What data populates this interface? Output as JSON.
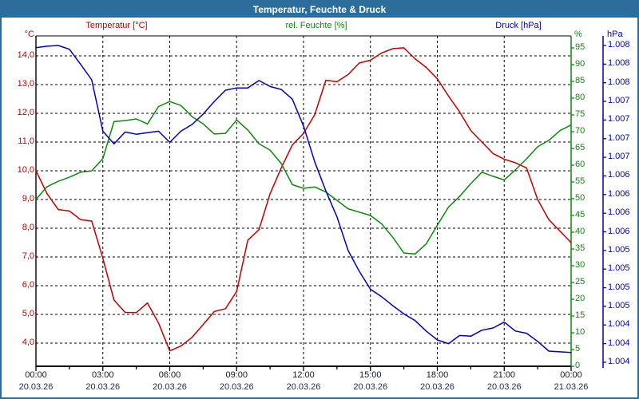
{
  "window": {
    "title": "Temperatur, Feuchte & Druck",
    "frame_color": "#2c6d9b"
  },
  "legend": {
    "items": [
      {
        "label": "Temperatur [°C]",
        "color": "#c00000"
      },
      {
        "label": "rel. Feuchte [%]",
        "color": "#0a8a0a"
      },
      {
        "label": "Druck [hPa]",
        "color": "#0000bb"
      }
    ]
  },
  "chart_data": {
    "type": "line",
    "title": "Temperatur, Feuchte & Druck",
    "x_hours": [
      0,
      0.5,
      1,
      1.5,
      2,
      2.5,
      3,
      3.5,
      4,
      4.5,
      5,
      5.5,
      6,
      6.5,
      7,
      7.5,
      8,
      8.5,
      9,
      9.5,
      10,
      10.5,
      11,
      11.5,
      12,
      12.5,
      13,
      13.5,
      14,
      14.5,
      15,
      15.5,
      16,
      16.5,
      17,
      17.5,
      18,
      18.5,
      19,
      19.5,
      20,
      20.5,
      21,
      21.5,
      22,
      22.5,
      23,
      23.5,
      24
    ],
    "series": [
      {
        "name": "Temperatur [°C]",
        "axis": "temperature",
        "color": "#c00000",
        "values": [
          10.0,
          9.2,
          8.65,
          8.6,
          8.3,
          8.25,
          6.95,
          5.5,
          5.07,
          5.06,
          5.4,
          4.7,
          3.73,
          3.9,
          4.2,
          4.65,
          5.1,
          5.2,
          5.8,
          7.58,
          7.95,
          9.2,
          10.1,
          10.9,
          11.3,
          11.95,
          13.15,
          13.1,
          13.35,
          13.75,
          13.85,
          14.1,
          14.25,
          14.28,
          13.9,
          13.6,
          13.2,
          12.6,
          12.05,
          11.4,
          11.0,
          10.6,
          10.4,
          10.28,
          10.1,
          9.0,
          8.3,
          7.9,
          7.5
        ]
      },
      {
        "name": "rel. Feuchte [%]",
        "axis": "humidity",
        "color": "#0a8a0a",
        "values": [
          49.8,
          53.6,
          55.2,
          56.4,
          57.9,
          58.3,
          62.0,
          73.0,
          73.3,
          73.8,
          72.3,
          77.5,
          79.0,
          77.8,
          74.5,
          72.3,
          69.3,
          69.5,
          73.5,
          70.5,
          66.4,
          64.5,
          60.5,
          54.2,
          53.1,
          53.5,
          52.0,
          49.5,
          47.0,
          46.0,
          45.0,
          42.5,
          38.5,
          33.8,
          33.5,
          36.5,
          42.1,
          47.5,
          50.7,
          54.5,
          57.9,
          56.7,
          55.6,
          58.6,
          61.9,
          65.5,
          67.4,
          70.3,
          72.0
        ]
      },
      {
        "name": "Druck [hPa]",
        "axis": "pressure",
        "color": "#0000bb",
        "values": [
          1008.22,
          1008.24,
          1008.25,
          1008.2,
          1008.0,
          1007.79,
          1007.1,
          1006.93,
          1007.09,
          1007.06,
          1007.08,
          1007.1,
          1006.95,
          1007.1,
          1007.19,
          1007.33,
          1007.5,
          1007.65,
          1007.68,
          1007.68,
          1007.78,
          1007.7,
          1007.66,
          1007.53,
          1007.17,
          1006.69,
          1006.3,
          1005.95,
          1005.5,
          1005.22,
          1004.98,
          1004.88,
          1004.76,
          1004.65,
          1004.56,
          1004.42,
          1004.3,
          1004.25,
          1004.36,
          1004.35,
          1004.43,
          1004.46,
          1004.54,
          1004.42,
          1004.39,
          1004.28,
          1004.15,
          1004.14,
          1004.13
        ]
      }
    ],
    "x_axis": {
      "range_hours": [
        0,
        24
      ],
      "major_interval_hours": 3,
      "minor_tick_hours": 1.5,
      "tick_times": [
        "00:00",
        "03:00",
        "06:00",
        "09:00",
        "12:00",
        "15:00",
        "18:00",
        "21:00",
        "00:00"
      ],
      "tick_dates": [
        "20.03.26",
        "20.03.26",
        "20.03.26",
        "20.03.26",
        "20.03.26",
        "20.03.26",
        "20.03.26",
        "20.03.26",
        "21.03.26"
      ]
    },
    "y_axes": {
      "temperature": {
        "unit": "°C",
        "side": "left",
        "color": "#c00000",
        "tick_labels": [
          "14,0",
          "13,0",
          "12,0",
          "11,0",
          "10,0",
          "9,0",
          "8,0",
          "7,0",
          "6,0",
          "5,0",
          "4,0"
        ],
        "tick_values": [
          14,
          13,
          12,
          11,
          10,
          9,
          8,
          7,
          6,
          5,
          4
        ]
      },
      "humidity": {
        "unit": "%",
        "side": "right",
        "color": "#0a8a0a",
        "tick_values": [
          95,
          90,
          85,
          80,
          75,
          70,
          65,
          60,
          55,
          50,
          45,
          40,
          35,
          30,
          25,
          20,
          15,
          10,
          5,
          0
        ]
      },
      "pressure": {
        "unit": "hPa",
        "side": "far-right",
        "color": "#0000bb",
        "tick_labels": [
          "1.008",
          "1.008",
          "1.008",
          "1.007",
          "1.007",
          "1.007",
          "1.007",
          "1.006",
          "1.006",
          "1.006",
          "1.006",
          "1.005",
          "1.005",
          "1.005",
          "1.005",
          "1.004",
          "1.004",
          "1.004"
        ]
      }
    },
    "grid": {
      "style": "dashed",
      "color": "#000000",
      "h_lines_temp_values": [
        14,
        13,
        12,
        11,
        10,
        9,
        8,
        7,
        6,
        5,
        4
      ],
      "v_lines_hours": [
        3,
        6,
        9,
        12,
        15,
        18,
        21
      ]
    }
  }
}
